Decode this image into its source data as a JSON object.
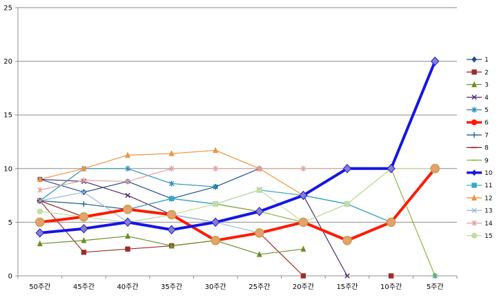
{
  "chart_data": {
    "type": "line",
    "title": "",
    "xlabel": "",
    "ylabel": "",
    "categories": [
      "50주간",
      "45주간",
      "40주간",
      "35주간",
      "30주간",
      "25주간",
      "20주간",
      "15주간",
      "10주간",
      "5주간"
    ],
    "y_ticks": [
      "0",
      "5",
      "10",
      "15",
      "20",
      "25"
    ],
    "ylim": [
      0,
      25
    ],
    "grid": "horizontal",
    "legend_position": "right",
    "series": [
      {
        "name": "1",
        "color": "#1f4e8c",
        "marker": "diamond",
        "width": 1.2,
        "values": [
          9,
          7.8,
          8.8,
          7.2,
          8.3,
          10,
          null,
          null,
          null,
          null
        ]
      },
      {
        "name": "2",
        "color": "#9b2d2a",
        "marker": "square",
        "width": 1.2,
        "values": [
          7,
          2.2,
          2.5,
          2.8,
          3.3,
          4,
          0,
          null,
          0,
          null
        ]
      },
      {
        "name": "3",
        "color": "#6b8e23",
        "marker": "triangle",
        "width": 1.2,
        "values": [
          3,
          3.3,
          3.7,
          2.8,
          3.3,
          2,
          2.5,
          null,
          null,
          null
        ]
      },
      {
        "name": "4",
        "color": "#4b2c6f",
        "marker": "x",
        "width": 1.2,
        "values": [
          9,
          8.8,
          7.5,
          5.7,
          5,
          6,
          7.5,
          0,
          null,
          null
        ]
      },
      {
        "name": "5",
        "color": "#2a8fb0",
        "marker": "star",
        "width": 1.2,
        "values": [
          7,
          10,
          10,
          8.6,
          8.3,
          null,
          null,
          null,
          null,
          0
        ]
      },
      {
        "name": "6",
        "color": "#ff1a00",
        "marker": "circle",
        "width": 4,
        "values": [
          5,
          5.5,
          6.2,
          5.7,
          3.3,
          4,
          5,
          3.3,
          5,
          10
        ]
      },
      {
        "name": "7",
        "color": "#1f5f8b",
        "marker": "plus",
        "width": 1.2,
        "values": [
          7,
          6.7,
          6.2,
          7.2,
          6.7,
          6,
          7.5,
          6.7,
          5,
          null
        ]
      },
      {
        "name": "8",
        "color": "#8b1a1a",
        "marker": "dash",
        "width": 1.2,
        "values": [
          7,
          5.5,
          6.2,
          5.7,
          null,
          null,
          null,
          null,
          null,
          null
        ]
      },
      {
        "name": "9",
        "color": "#8db33a",
        "marker": "dash",
        "width": 1.2,
        "values": [
          null,
          null,
          null,
          null,
          6.7,
          6,
          5,
          6.7,
          10,
          0
        ]
      },
      {
        "name": "10",
        "color": "#1515e6",
        "marker": "diamond",
        "width": 4,
        "values": [
          4,
          4.4,
          5,
          4.3,
          5,
          6,
          7.5,
          10,
          10,
          20
        ]
      },
      {
        "name": "11",
        "color": "#3aa6c8",
        "marker": "square",
        "width": 1.2,
        "values": [
          null,
          null,
          6.2,
          7.2,
          6.7,
          8,
          7.5,
          6.7,
          5,
          null
        ]
      },
      {
        "name": "12",
        "color": "#f0913a",
        "marker": "triangle",
        "width": 1.2,
        "values": [
          9,
          10,
          11.25,
          11.4,
          11.7,
          10,
          7.5,
          null,
          null,
          null
        ]
      },
      {
        "name": "13",
        "color": "#9db6d8",
        "marker": "x",
        "width": 1.2,
        "values": [
          7,
          7.8,
          5,
          5.7,
          5,
          4,
          5,
          null,
          null,
          null
        ]
      },
      {
        "name": "14",
        "color": "#e0a0a0",
        "marker": "star",
        "width": 1.2,
        "values": [
          8,
          8.9,
          8.8,
          10,
          10,
          10,
          10,
          10,
          10,
          10
        ]
      },
      {
        "name": "15",
        "color": "#c4dca0",
        "marker": "circle",
        "width": 1.2,
        "values": [
          6,
          5.5,
          5,
          5.7,
          6.7,
          8,
          5,
          6.7,
          10,
          10
        ]
      }
    ]
  }
}
